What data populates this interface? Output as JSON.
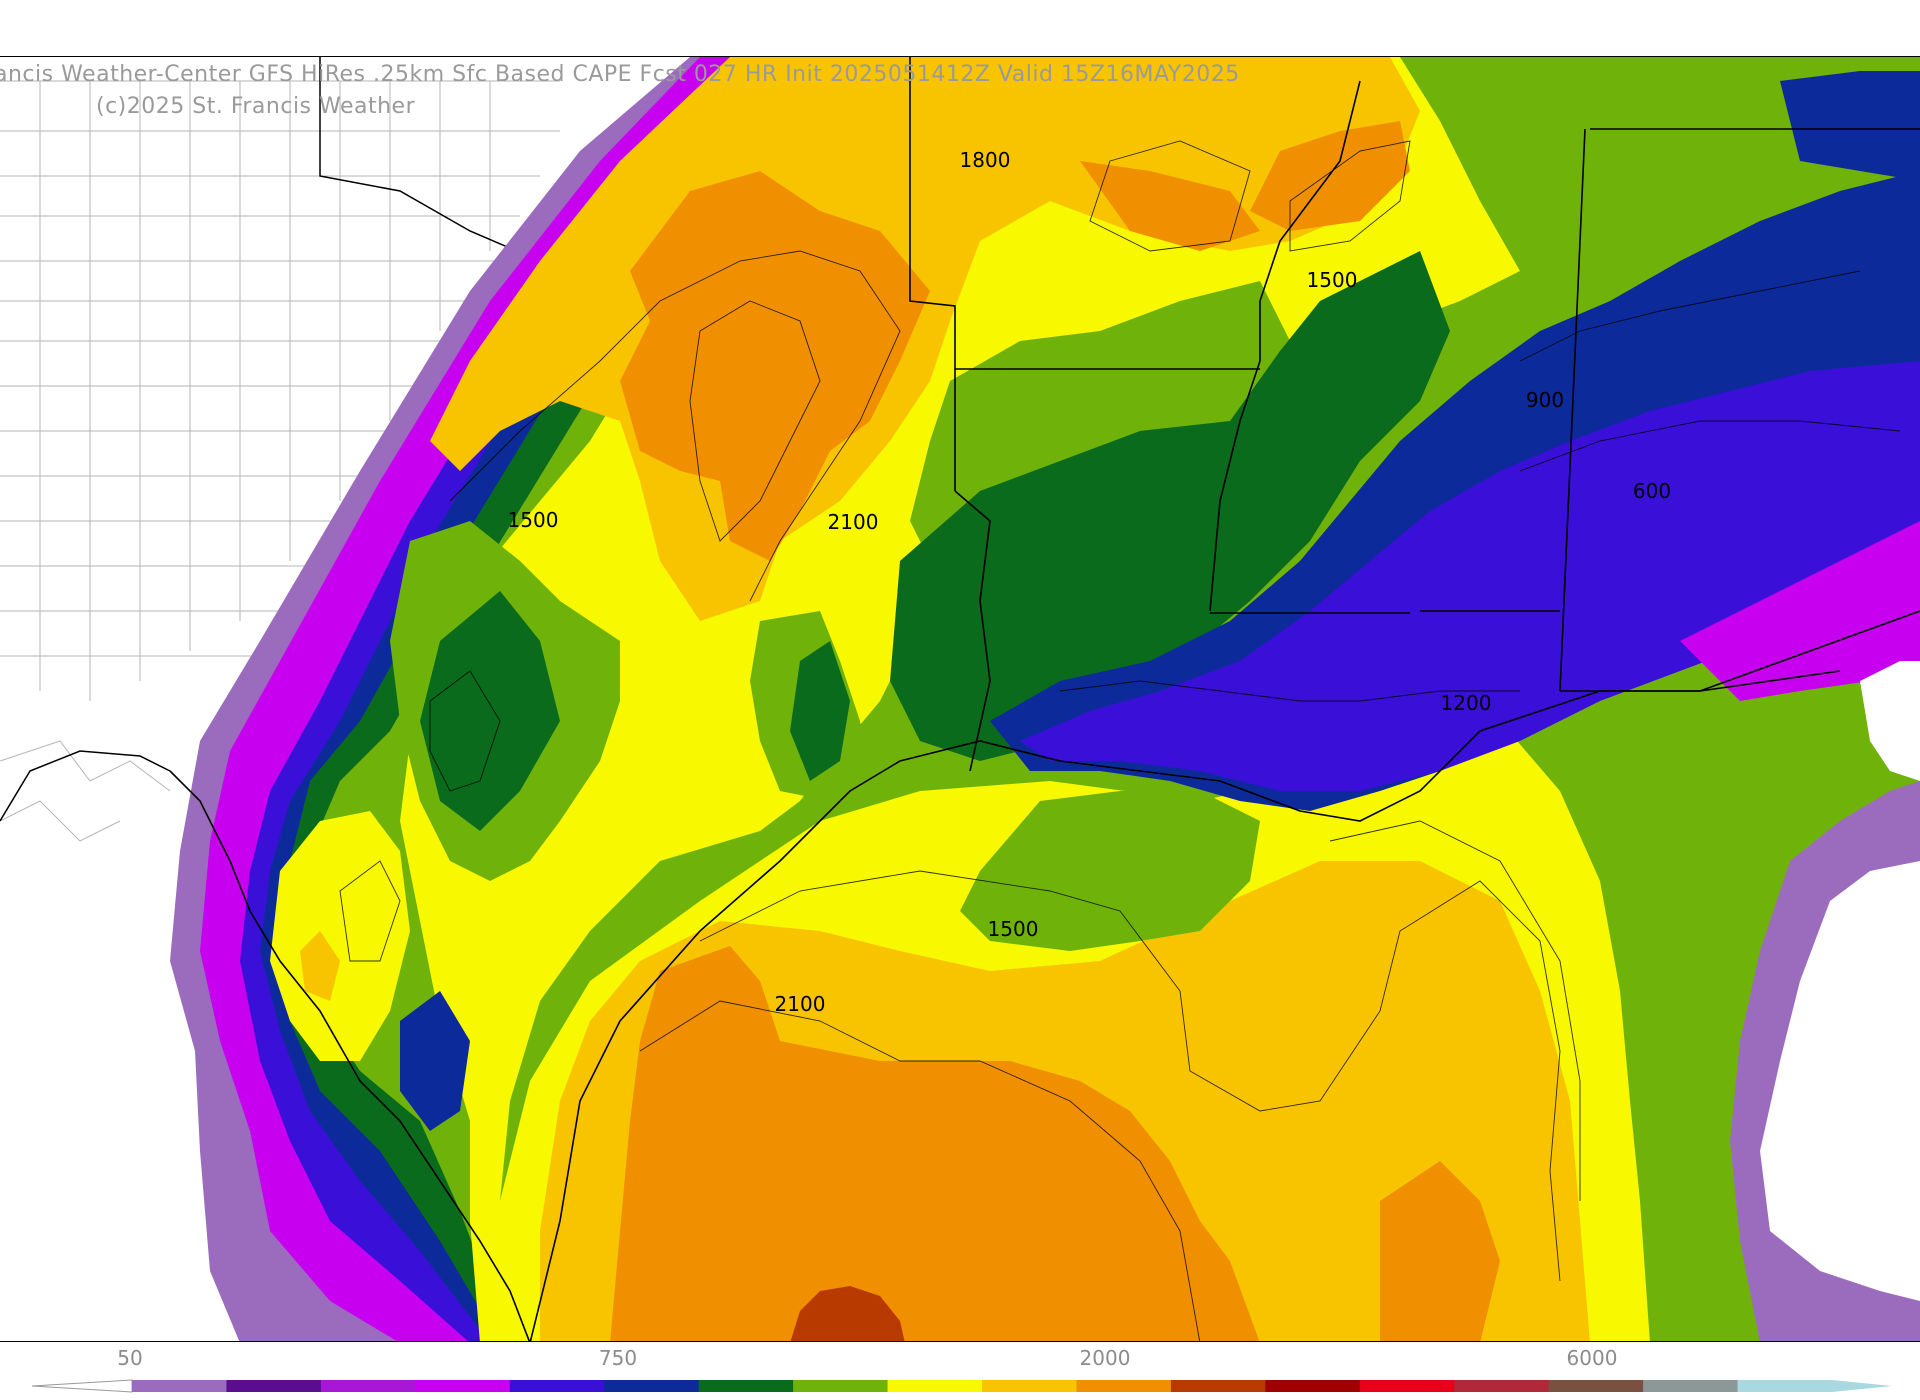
{
  "header": {
    "title_line_1": "ancis Weather-Center GFS HiRes .25km Sfc Based CAPE  Fcst 027 HR Init 2025051412Z  Valid 15Z16MAY2025",
    "title_line_2": "(c)2025 St. Francis Weather"
  },
  "contour_labels": [
    "1800",
    "1500",
    "1500",
    "900",
    "600",
    "2100",
    "1200",
    "1500",
    "2100"
  ],
  "colorbar": {
    "tick_labels": [
      "50",
      "750",
      "2000",
      "6000"
    ],
    "colors": [
      "#9b6cbd",
      "#5a0d8e",
      "#a816d8",
      "#c800f0",
      "#3a10d8",
      "#0d2a9a",
      "#0a6b1c",
      "#6fb20a",
      "#f8f800",
      "#f8c400",
      "#f09000",
      "#b83a00",
      "#a00000",
      "#e8001a",
      "#b0283a",
      "#7a5040",
      "#8c9898",
      "#a8d8e0"
    ]
  },
  "legend": {
    "colors": {
      "light_purple": "#9b6cbd",
      "dark_purple": "#5a0d8e",
      "violet": "#a816d8",
      "magenta": "#c800f0",
      "indigo": "#3a10d8",
      "navy": "#0d2a9a",
      "dark_green": "#0a6b1c",
      "green": "#6fb20a",
      "yellow": "#f8f800",
      "gold": "#f8c400",
      "orange": "#f09000",
      "rust": "#b83a00"
    }
  }
}
